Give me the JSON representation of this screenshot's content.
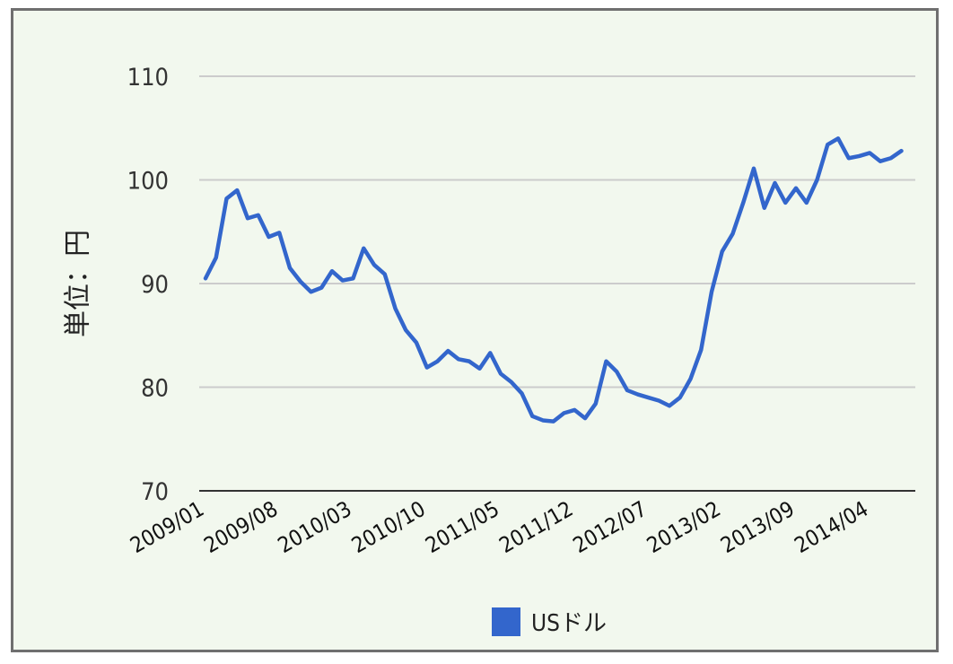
{
  "chart_data": {
    "type": "line",
    "ylabel": "単位：円",
    "xlabel": "",
    "ylim": [
      70,
      110
    ],
    "yticks": [
      70,
      80,
      90,
      100,
      110
    ],
    "x_tick_labels": [
      "2009/01",
      "2009/08",
      "2010/03",
      "2010/10",
      "2011/05",
      "2011/12",
      "2012/07",
      "2013/02",
      "2013/09",
      "2014/04"
    ],
    "grid": true,
    "legend_position": "bottom",
    "series": [
      {
        "name": "USドル",
        "color": "#3366cc",
        "x": [
          "2009/01",
          "2009/02",
          "2009/03",
          "2009/04",
          "2009/05",
          "2009/06",
          "2009/07",
          "2009/08",
          "2009/09",
          "2009/10",
          "2009/11",
          "2009/12",
          "2010/01",
          "2010/02",
          "2010/03",
          "2010/04",
          "2010/05",
          "2010/06",
          "2010/07",
          "2010/08",
          "2010/09",
          "2010/10",
          "2010/11",
          "2010/12",
          "2011/01",
          "2011/02",
          "2011/03",
          "2011/04",
          "2011/05",
          "2011/06",
          "2011/07",
          "2011/08",
          "2011/09",
          "2011/10",
          "2011/11",
          "2011/12",
          "2012/01",
          "2012/02",
          "2012/03",
          "2012/04",
          "2012/05",
          "2012/06",
          "2012/07",
          "2012/08",
          "2012/09",
          "2012/10",
          "2012/11",
          "2012/12",
          "2013/01",
          "2013/02",
          "2013/03",
          "2013/04",
          "2013/05",
          "2013/06",
          "2013/07",
          "2013/08",
          "2013/09",
          "2013/10",
          "2013/11",
          "2013/12",
          "2014/01",
          "2014/02",
          "2014/03",
          "2014/04",
          "2014/05",
          "2014/06",
          "2014/07"
        ],
        "values": [
          90.5,
          92.5,
          98.2,
          99.0,
          96.3,
          96.6,
          94.5,
          94.9,
          91.5,
          90.2,
          89.2,
          89.6,
          91.2,
          90.3,
          90.5,
          93.4,
          91.8,
          90.9,
          87.6,
          85.5,
          84.3,
          81.9,
          82.5,
          83.5,
          82.7,
          82.5,
          81.8,
          83.3,
          81.3,
          80.5,
          79.4,
          77.2,
          76.8,
          76.7,
          77.5,
          77.8,
          77.0,
          78.4,
          82.5,
          81.5,
          79.7,
          79.3,
          79.0,
          78.7,
          78.2,
          79.0,
          80.8,
          83.6,
          89.2,
          93.1,
          94.8,
          97.8,
          101.1,
          97.3,
          99.7,
          97.8,
          99.2,
          97.8,
          100.0,
          103.4,
          104.0,
          102.1,
          102.3,
          102.6,
          101.8,
          102.1,
          102.8
        ]
      }
    ]
  }
}
